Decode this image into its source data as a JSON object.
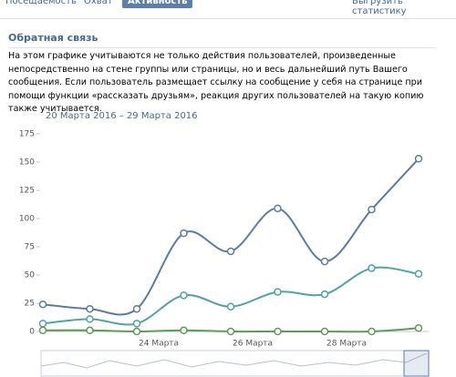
{
  "tabs": [
    "Посещаемость",
    "Охват",
    "Активность"
  ],
  "export_link": "Выгрузить статистику",
  "section": {
    "title": "Обратная связь",
    "description": "На этом графике учитываются не только действия пользователей, произведенные непосредственно на стене группы или страницы, но и весь дальнейший путь Вашего сообщения. Если пользователь размещает ссылку на сообщение у себя на странице при помощи функции «рассказать друзьям», реакция других пользователей на такую копию также учитывается.",
    "date_range": "20 Марта 2016 – 29 Марта 2016"
  },
  "chart_data": {
    "type": "line",
    "categories": [
      null,
      null,
      "24 Марта",
      null,
      "26 Марта",
      null,
      "28 Марта",
      null,
      null
    ],
    "series": [
      {
        "color": "#5d7ba0",
        "values": [
          24,
          20,
          20,
          87,
          71,
          109,
          62,
          108,
          153
        ]
      },
      {
        "color": "#4fa2a7",
        "values": [
          7,
          11,
          7,
          32,
          22,
          35,
          33,
          56,
          51
        ]
      },
      {
        "color": "#5f9a5a",
        "values": [
          1,
          1,
          0,
          1,
          0,
          0,
          0,
          0,
          3
        ]
      }
    ],
    "ylim": [
      0,
      175
    ],
    "yticks": [
      0,
      25,
      50,
      75,
      100,
      125,
      150,
      175
    ]
  }
}
